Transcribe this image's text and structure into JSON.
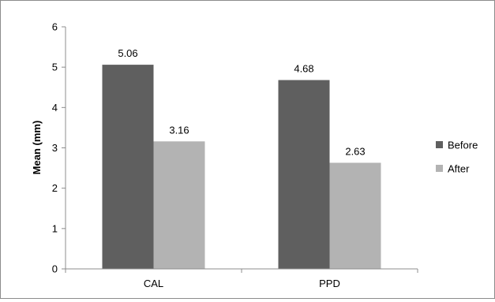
{
  "chart_data": {
    "type": "bar",
    "categories": [
      "CAL",
      "PPD"
    ],
    "series": [
      {
        "name": "Before",
        "values": [
          5.06,
          4.68
        ],
        "color": "#5f5f5f"
      },
      {
        "name": "After",
        "values": [
          3.16,
          2.63
        ],
        "color": "#b3b3b3"
      }
    ],
    "data_labels": [
      [
        "5.06",
        "4.68"
      ],
      [
        "3.16",
        "2.63"
      ]
    ],
    "ylabel": "Mean (mm)",
    "xlabel": "",
    "ylim": [
      0,
      6
    ],
    "yticks": [
      0,
      1,
      2,
      3,
      4,
      5,
      6
    ],
    "grid": false,
    "legend_position": "right"
  },
  "colors": {
    "axis": "#8c8c8c",
    "frame": "#8c8c8c"
  }
}
